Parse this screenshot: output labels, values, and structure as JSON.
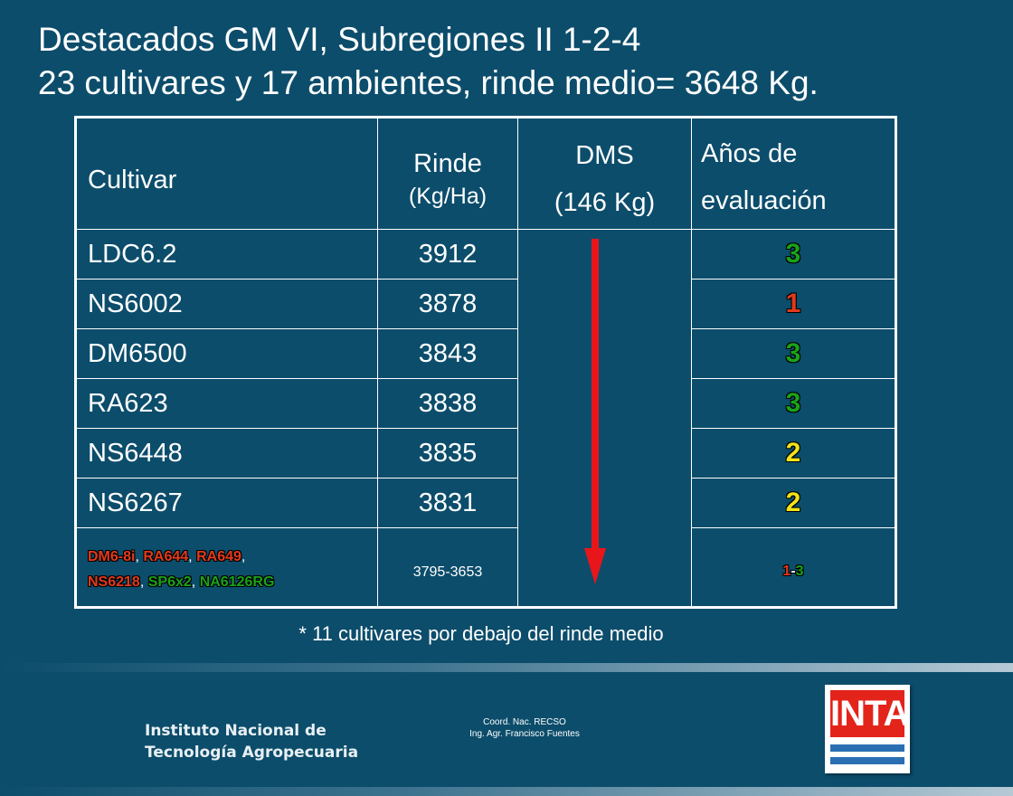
{
  "title": {
    "line1": "Destacados GM VI, Subregiones II 1-2-4",
    "line2": "23 cultivares y 17 ambientes, rinde medio= 3648 Kg."
  },
  "table": {
    "headers": {
      "cultivar": "Cultivar",
      "rinde_line1": "Rinde",
      "rinde_line2": "(Kg/Ha)",
      "dms_line1": "DMS",
      "dms_line2": "(146 Kg)",
      "anos_line1": "Años de",
      "anos_line2": "evaluación"
    },
    "rows": [
      {
        "cultivar": "LDC6.2",
        "rinde": "3912",
        "anos": "3",
        "anos_color": "#1aa319"
      },
      {
        "cultivar": "NS6002",
        "rinde": "3878",
        "anos": "1",
        "anos_color": "#e23a1c"
      },
      {
        "cultivar": "DM6500",
        "rinde": "3843",
        "anos": "3",
        "anos_color": "#1aa319"
      },
      {
        "cultivar": "RA623",
        "rinde": "3838",
        "anos": "3",
        "anos_color": "#1aa319"
      },
      {
        "cultivar": "NS6448",
        "rinde": "3835",
        "anos": "2",
        "anos_color": "#f2e21a"
      },
      {
        "cultivar": "NS6267",
        "rinde": "3831",
        "anos": "2",
        "anos_color": "#f2e21a"
      }
    ],
    "last_row": {
      "cultivars": [
        {
          "name": "DM6-8i",
          "color": "#e23a1c"
        },
        {
          "name": "RA644",
          "color": "#e23a1c"
        },
        {
          "name": "RA649",
          "color": "#e23a1c"
        },
        {
          "name": "NS6218",
          "color": "#e23a1c"
        },
        {
          "name": "SP6x2",
          "color": "#1aa319"
        },
        {
          "name": "NA6126RG",
          "color": "#1aa319"
        }
      ],
      "separator": ",",
      "rinde": "3795-3653",
      "anos_from": "1",
      "anos_dash": "-",
      "anos_to": "3",
      "anos_from_color": "#e23a1c",
      "anos_to_color": "#1aa319"
    },
    "arrow_color": "#e8161b"
  },
  "footnote": "* 11 cultivares por debajo del rinde medio",
  "footer": {
    "org_line1": "Instituto Nacional de",
    "org_line2": "Tecnología Agropecuaria",
    "credit_line1": "Coord. Nac. RECSO",
    "credit_line2": "Ing. Agr. Francisco Fuentes",
    "logo_text": "INTA",
    "logo_red": "#e3241b",
    "logo_blue": "#2b6fb3"
  }
}
